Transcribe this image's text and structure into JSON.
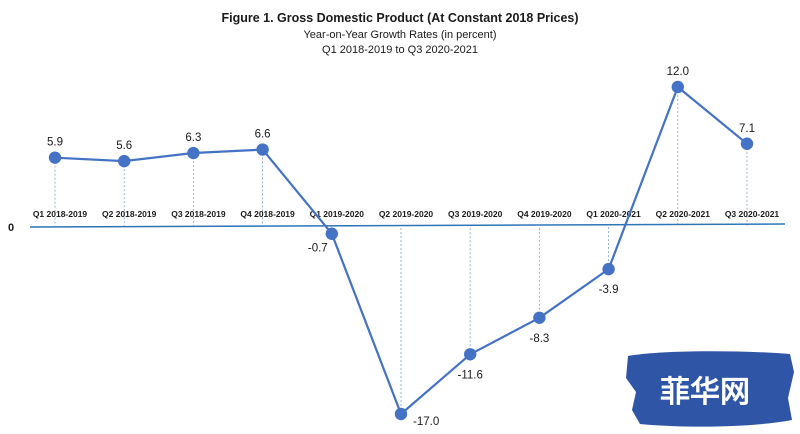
{
  "chart_data": {
    "type": "line",
    "title": "Figure 1. Gross Domestic Product (At Constant 2018 Prices)",
    "subtitle_1": "Year-on-Year Growth Rates (in percent)",
    "subtitle_2": "Q1 2018-2019 to Q3 2020-2021",
    "zero_label": "0",
    "categories": [
      "Q1 2018-2019",
      "Q2 2018-2019",
      "Q3 2018-2019",
      "Q4 2018-2019",
      "Q1 2019-2020",
      "Q2 2019-2020",
      "Q3 2019-2020",
      "Q4 2019-2020",
      "Q1 2020-2021",
      "Q2 2020-2021",
      "Q3 2020-2021"
    ],
    "values": [
      5.9,
      5.6,
      6.3,
      6.6,
      -0.7,
      -17.0,
      -11.6,
      -8.3,
      -3.9,
      12.0,
      7.1
    ],
    "value_labels": [
      "5.9",
      "5.6",
      "6.3",
      "6.6",
      "-0.7",
      "-17.0",
      "-11.6",
      "-8.3",
      "-3.9",
      "12.0",
      "7.1"
    ],
    "ylim": [
      -17.0,
      12.0
    ],
    "grid": false,
    "line_color": "#4472c4",
    "marker_color": "#4472c4",
    "axis_color": "#2e75b6"
  },
  "watermark": {
    "text": "菲华网",
    "background_color": "#2f56a6"
  }
}
